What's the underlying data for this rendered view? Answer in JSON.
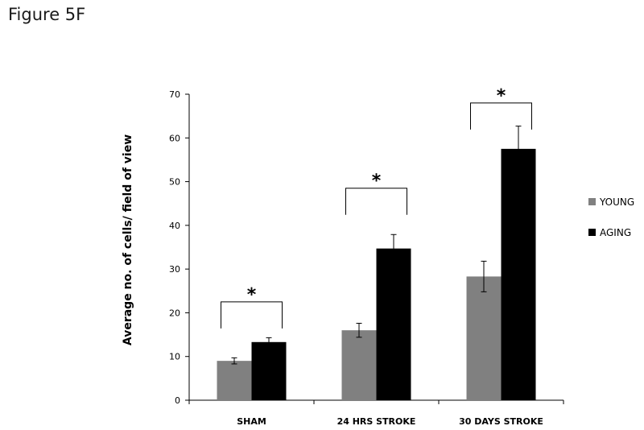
{
  "figure_label": "Figure  5F",
  "chart_data": {
    "type": "bar",
    "categories": [
      "SHAM",
      "24 HRS STROKE",
      "30 DAYS STROKE"
    ],
    "series": [
      {
        "name": "YOUNG",
        "values": [
          9,
          16,
          28.3
        ],
        "errors": [
          0.7,
          1.6,
          3.5
        ],
        "color": "#808080"
      },
      {
        "name": "AGING",
        "values": [
          13.3,
          34.7,
          57.5
        ],
        "errors": [
          1.0,
          3.2,
          5.2
        ],
        "color": "#000000"
      }
    ],
    "ylabel": "Average no. of cells/ field of view",
    "xlabel": "",
    "ylim": [
      0,
      70
    ],
    "yticks": [
      0,
      10,
      20,
      30,
      40,
      50,
      60,
      70
    ],
    "grid": false,
    "legend_position": "right",
    "annotations": [
      {
        "category": "SHAM",
        "text": "*",
        "bracket_height": 22.5
      },
      {
        "category": "24 HRS STROKE",
        "text": "*",
        "bracket_height": 48.5
      },
      {
        "category": "30 DAYS STROKE",
        "text": "*",
        "bracket_height": 68
      }
    ]
  }
}
